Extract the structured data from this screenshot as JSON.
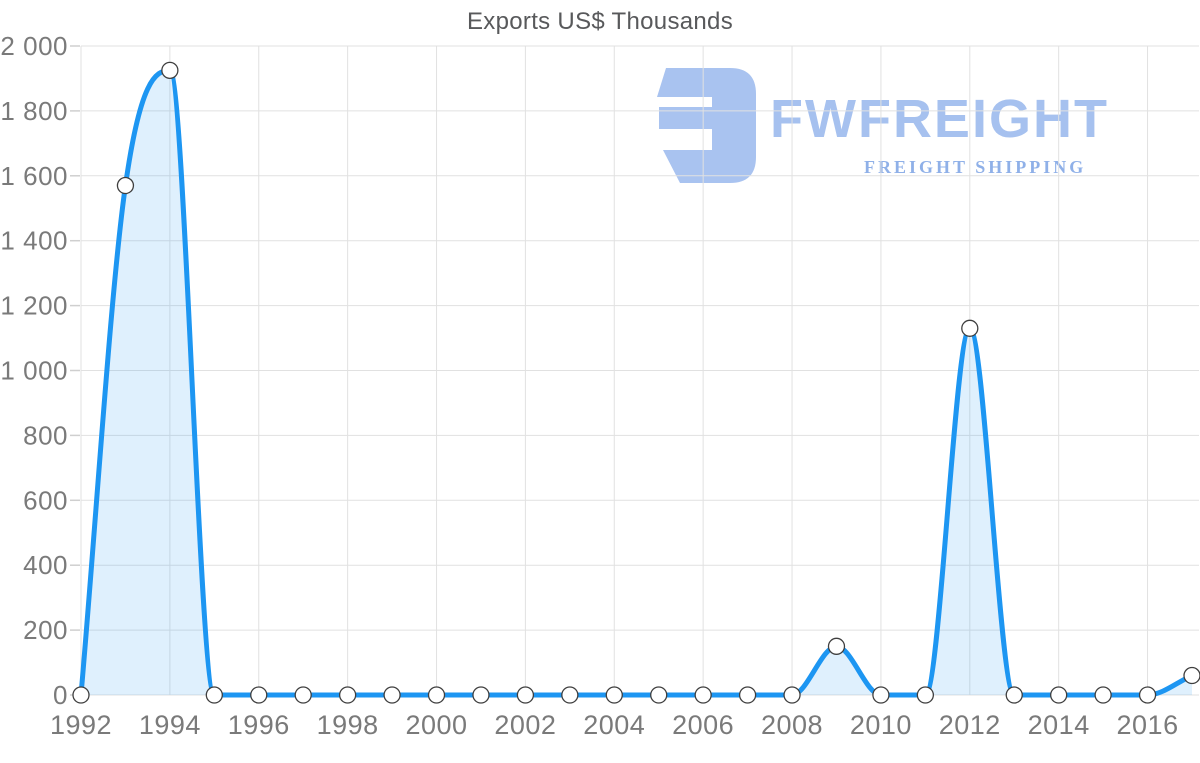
{
  "chart_data": {
    "type": "area",
    "title": "Exports US$ Thousands",
    "xlabel": "",
    "ylabel": "",
    "x": [
      1992,
      1993,
      1994,
      1995,
      1996,
      1997,
      1998,
      1999,
      2000,
      2001,
      2002,
      2003,
      2004,
      2005,
      2006,
      2007,
      2008,
      2009,
      2010,
      2011,
      2012,
      2013,
      2014,
      2015,
      2016,
      2017
    ],
    "series": [
      {
        "name": "Exports US$ Thousands",
        "values": [
          0,
          1570,
          1925,
          0,
          0,
          0,
          0,
          0,
          0,
          0,
          0,
          0,
          0,
          0,
          0,
          0,
          0,
          150,
          0,
          0,
          1130,
          0,
          0,
          0,
          0,
          60
        ]
      }
    ],
    "ylim": [
      0,
      2000
    ],
    "ytick_step": 200,
    "ytick_labels": [
      "0",
      "200",
      "400",
      "600",
      "800",
      "1 000",
      "1 200",
      "1 400",
      "1 600",
      "1 800",
      "2 000"
    ],
    "xtick_labels": [
      "1992",
      "1994",
      "1996",
      "1998",
      "2000",
      "2002",
      "2004",
      "2006",
      "2008",
      "2010",
      "2012",
      "2014",
      "2016"
    ],
    "xtick_every": 2,
    "grid": true,
    "legend": "none",
    "marker": "circle"
  },
  "watermark": {
    "brand": "FWFREIGHT",
    "tagline": "FREIGHT SHIPPING"
  },
  "colors": {
    "line": "#1d96f2",
    "area_fill": "rgba(29,150,242,0.14)",
    "grid": "#e1e1e1",
    "tick": "#cfcfcf",
    "axis_text": "#7a7a7a",
    "title_text": "#58595b",
    "marker_fill": "#ffffff",
    "marker_stroke": "#3f3f3f",
    "watermark_main": "#a9c3f0",
    "watermark_sub": "#8fb0e8"
  }
}
